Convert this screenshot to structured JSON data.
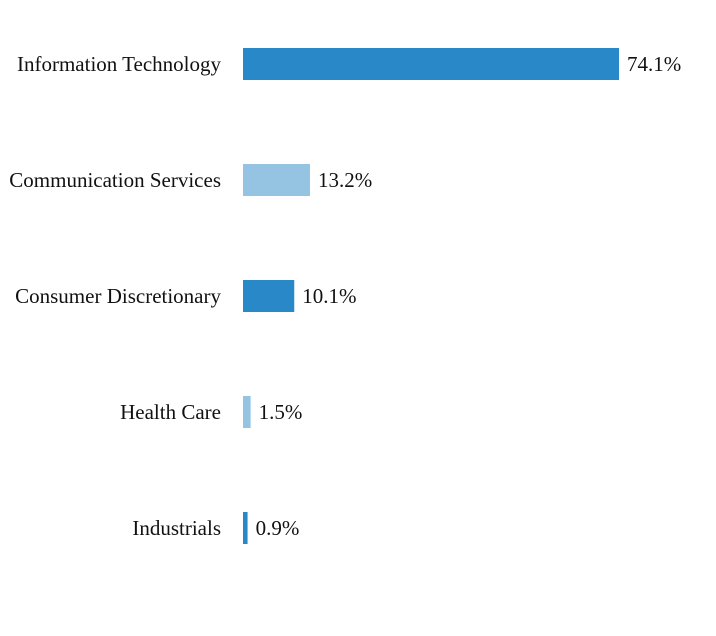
{
  "chart_data": {
    "type": "bar",
    "orientation": "horizontal",
    "categories": [
      "Information Technology",
      "Communication Services",
      "Consumer Discretionary",
      "Health Care",
      "Industrials"
    ],
    "values": [
      74.1,
      13.2,
      10.1,
      1.5,
      0.9
    ],
    "value_labels": [
      "74.1%",
      "13.2%",
      "10.1%",
      "1.5%",
      "0.9%"
    ],
    "colors": [
      "#2989c8",
      "#94c4e2",
      "#2989c8",
      "#94c4e2",
      "#2989c8"
    ],
    "xlim": [
      0,
      74.1
    ],
    "title": "",
    "xlabel": "",
    "ylabel": "",
    "grid": false,
    "legend": "none"
  }
}
